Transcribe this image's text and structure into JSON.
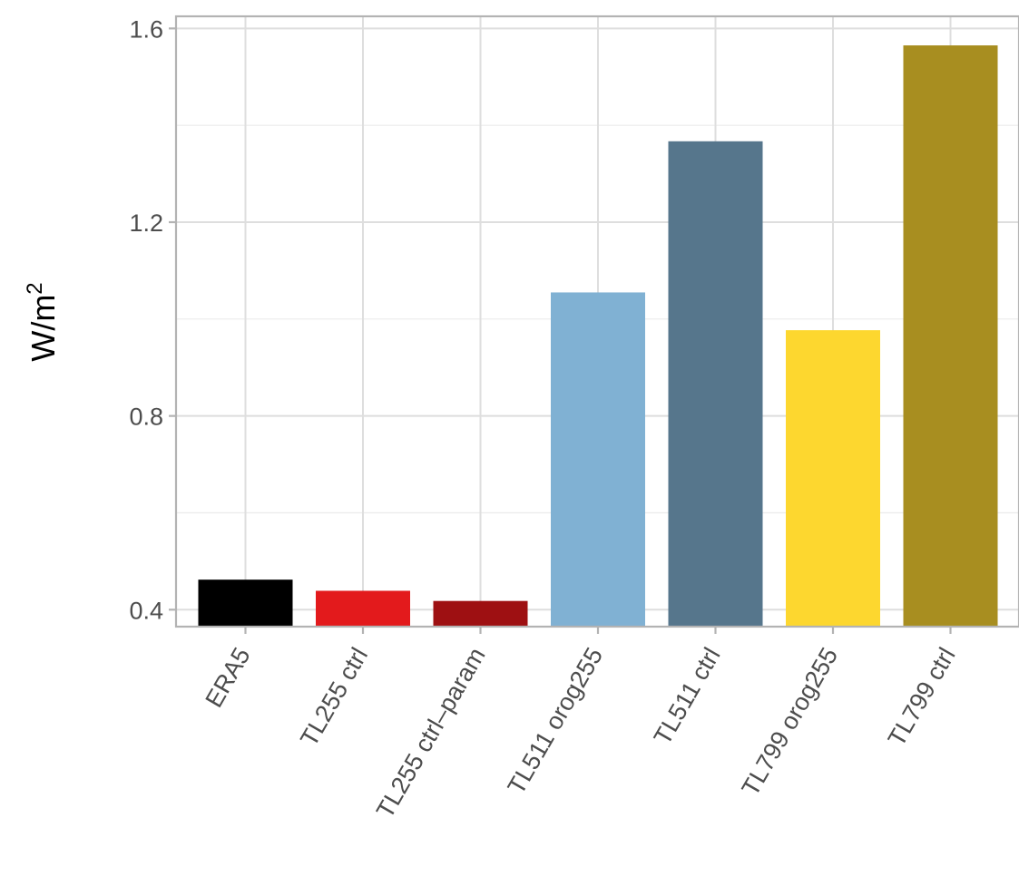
{
  "chart_data": {
    "type": "bar",
    "title": "",
    "xlabel": "",
    "ylabel": "W/m",
    "ylabel_superscript": "2",
    "categories": [
      "ERA5",
      "TL255 ctrl",
      "TL255 ctrl–param",
      "TL511 orog255",
      "TL511 ctrl",
      "TL799 orog255",
      "TL799 ctrl"
    ],
    "values": [
      0.462,
      0.439,
      0.418,
      1.055,
      1.367,
      0.977,
      1.565
    ],
    "colors": [
      "#000000",
      "#e31a1c",
      "#9e1012",
      "#80b1d3",
      "#56768c",
      "#fdd72f",
      "#a88e20"
    ],
    "ylim": [
      0.365,
      1.625
    ],
    "yticks": [
      0.4,
      0.8,
      1.2,
      1.6
    ],
    "ytick_labels": [
      "0.4",
      "0.8",
      "1.2",
      "1.6"
    ],
    "y_minor_gridlines": [
      0.6,
      1.0,
      1.4
    ],
    "grid": true,
    "legend": "none"
  }
}
